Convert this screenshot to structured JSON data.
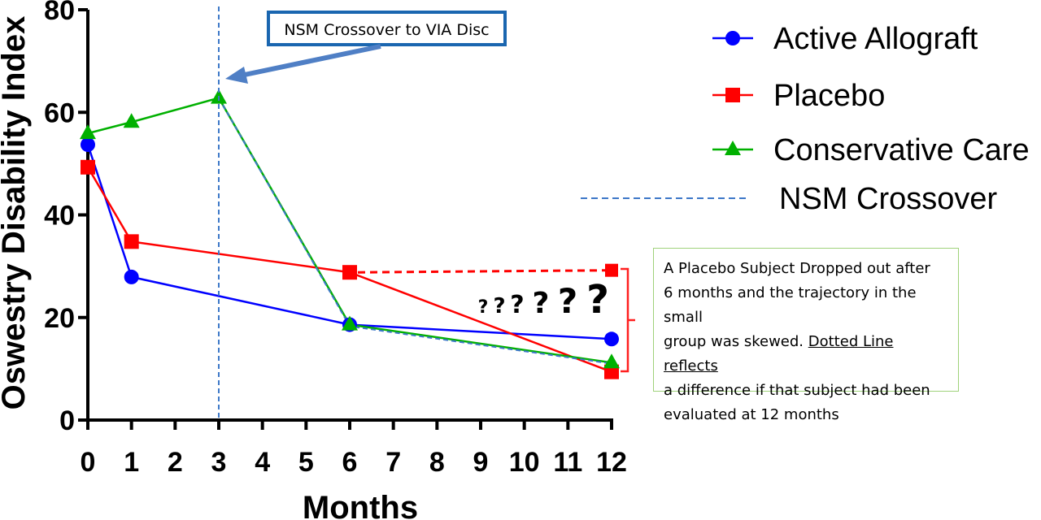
{
  "chart_data": {
    "type": "line",
    "xlabel": "Months",
    "ylabel": "Oswestry Disability Index",
    "xlim": [
      0,
      12
    ],
    "ylim": [
      0,
      80
    ],
    "x_ticks": [
      "0",
      "1",
      "2",
      "3",
      "4",
      "5",
      "6",
      "7",
      "8",
      "9",
      "10",
      "11",
      "12"
    ],
    "y_ticks": [
      "0",
      "20",
      "40",
      "60",
      "80"
    ],
    "grid": false,
    "legend_position": "top-right",
    "series": [
      {
        "name": "Active Allograft",
        "color": "#0000ff",
        "marker": "circle",
        "x": [
          0,
          1,
          6,
          12
        ],
        "y": [
          53.7,
          27.9,
          18.6,
          15.8
        ]
      },
      {
        "name": "Placebo",
        "color": "#ff0000",
        "marker": "square",
        "x": [
          0,
          1,
          6,
          12
        ],
        "y": [
          49.3,
          34.8,
          28.8,
          9.4
        ]
      },
      {
        "name": "Conservative Care",
        "color": "#00b000",
        "marker": "triangle",
        "x": [
          0,
          1,
          3,
          6,
          12
        ],
        "y": [
          55.9,
          58.1,
          62.8,
          18.6,
          11.2
        ]
      }
    ],
    "crossover": {
      "name": "NSM Crossover",
      "color": "#3d78c8",
      "x": 3,
      "line": "dashed"
    },
    "crossover_path": {
      "color": "#3d78c8",
      "x": [
        3,
        6,
        12
      ],
      "y": [
        62.8,
        18.3,
        11.0
      ]
    },
    "placebo_projection": {
      "color": "#ff0000",
      "x": [
        6,
        12
      ],
      "y": [
        28.8,
        29.2
      ]
    },
    "annotations": {
      "callout": "NSM Crossover to VIA Disc",
      "question_marks": [
        "?",
        "?",
        "?",
        "?",
        "?",
        "?"
      ],
      "note_lines": [
        {
          "text": "A Placebo Subject Dropped out after",
          "underline_part": ""
        },
        {
          "text": "6 months and the trajectory in the small",
          "underline_part": ""
        },
        {
          "text": "group was skewed. ",
          "underline_part": "Dotted Line reflects"
        },
        {
          "text": "a difference if that subject had been",
          "underline_part": ""
        },
        {
          "text": "evaluated at 12 months",
          "underline_part": ""
        }
      ]
    }
  }
}
